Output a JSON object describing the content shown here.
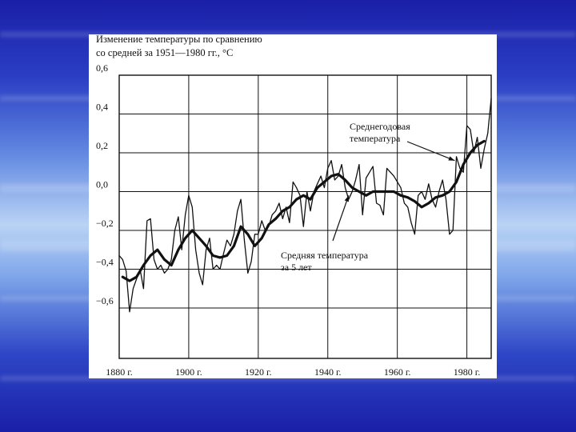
{
  "chart_data": {
    "type": "line",
    "title": [
      "Изменение температуры по сравнению",
      "со средней за 1951—1980 гг., °C"
    ],
    "xlabel": "",
    "ylabel": "",
    "xlim": [
      1880,
      1987
    ],
    "ylim": [
      -0.8,
      0.6
    ],
    "x_ticks": [
      1880,
      1900,
      1920,
      1940,
      1960,
      1980
    ],
    "x_tick_labels": [
      "1880 г.",
      "1900 г.",
      "1920 г.",
      "1940 г.",
      "1960 г.",
      "1980 г."
    ],
    "y_ticks": [
      0.6,
      0.4,
      0.2,
      0.0,
      -0.2,
      -0.4,
      -0.6
    ],
    "y_tick_labels": [
      "0,6",
      "0,4",
      "0,2",
      "0,0",
      "−0,2",
      "−0,4",
      "−0,6"
    ],
    "grid": true,
    "annotations": [
      {
        "text": [
          "Среднегодовая",
          "температура"
        ],
        "target_x": 1976.5,
        "target_y": 0.16
      },
      {
        "text": [
          "Средняя температура",
          "за 5 лет"
        ],
        "target_x": 1946,
        "target_y": -0.02
      }
    ],
    "series": [
      {
        "name": "",
        "style": "thin",
        "x": [
          1880,
          1881,
          1882,
          1883,
          1884,
          1885,
          1886,
          1887,
          1888,
          1889,
          1890,
          1891,
          1892,
          1893,
          1894,
          1895,
          1896,
          1897,
          1898,
          1899,
          1900,
          1901,
          1902,
          1903,
          1904,
          1905,
          1906,
          1907,
          1908,
          1909,
          1910,
          1911,
          1912,
          1913,
          1914,
          1915,
          1916,
          1917,
          1918,
          1919,
          1920,
          1921,
          1922,
          1923,
          1924,
          1925,
          1926,
          1927,
          1928,
          1929,
          1930,
          1931,
          1932,
          1933,
          1934,
          1935,
          1936,
          1937,
          1938,
          1939,
          1940,
          1941,
          1942,
          1943,
          1944,
          1945,
          1946,
          1947,
          1948,
          1949,
          1950,
          1951,
          1952,
          1953,
          1954,
          1955,
          1956,
          1957,
          1958,
          1959,
          1960,
          1961,
          1962,
          1963,
          1964,
          1965,
          1966,
          1967,
          1968,
          1969,
          1970,
          1971,
          1972,
          1973,
          1974,
          1975,
          1976,
          1977,
          1978,
          1979,
          1980,
          1981,
          1982,
          1983,
          1984,
          1985,
          1986,
          1987
        ],
        "values": [
          -0.33,
          -0.35,
          -0.41,
          -0.62,
          -0.5,
          -0.45,
          -0.4,
          -0.5,
          -0.15,
          -0.14,
          -0.35,
          -0.4,
          -0.38,
          -0.42,
          -0.4,
          -0.35,
          -0.2,
          -0.13,
          -0.3,
          -0.12,
          -0.02,
          -0.08,
          -0.3,
          -0.42,
          -0.48,
          -0.3,
          -0.24,
          -0.4,
          -0.38,
          -0.4,
          -0.32,
          -0.25,
          -0.28,
          -0.22,
          -0.1,
          -0.04,
          -0.25,
          -0.42,
          -0.36,
          -0.22,
          -0.22,
          -0.15,
          -0.2,
          -0.18,
          -0.12,
          -0.1,
          -0.06,
          -0.14,
          -0.08,
          -0.16,
          0.05,
          0.02,
          -0.02,
          -0.18,
          0.0,
          -0.1,
          0.0,
          0.04,
          0.08,
          0.02,
          0.12,
          0.16,
          0.06,
          0.08,
          0.14,
          0.02,
          -0.04,
          0.0,
          0.06,
          0.14,
          -0.12,
          0.07,
          0.1,
          0.13,
          -0.06,
          -0.07,
          -0.12,
          0.12,
          0.1,
          0.08,
          0.05,
          0.02,
          -0.06,
          -0.08,
          -0.16,
          -0.22,
          -0.02,
          0.0,
          -0.04,
          0.04,
          -0.04,
          -0.08,
          0.0,
          0.06,
          -0.04,
          -0.22,
          -0.2,
          0.18,
          0.12,
          0.1,
          0.34,
          0.32,
          0.2,
          0.28,
          0.12,
          0.22,
          0.3,
          0.48
        ]
      },
      {
        "name": "",
        "style": "thick",
        "x": [
          1881,
          1883,
          1885,
          1887,
          1889,
          1891,
          1893,
          1895,
          1897,
          1899,
          1901,
          1903,
          1905,
          1907,
          1909,
          1911,
          1913,
          1915,
          1917,
          1919,
          1921,
          1923,
          1925,
          1927,
          1929,
          1931,
          1933,
          1935,
          1937,
          1939,
          1941,
          1943,
          1945,
          1947,
          1949,
          1951,
          1953,
          1955,
          1957,
          1959,
          1961,
          1963,
          1965,
          1967,
          1969,
          1971,
          1973,
          1975,
          1977,
          1979,
          1981,
          1983,
          1985
        ],
        "values": [
          -0.44,
          -0.46,
          -0.44,
          -0.38,
          -0.33,
          -0.3,
          -0.35,
          -0.38,
          -0.3,
          -0.24,
          -0.2,
          -0.24,
          -0.28,
          -0.33,
          -0.34,
          -0.33,
          -0.28,
          -0.18,
          -0.22,
          -0.28,
          -0.24,
          -0.17,
          -0.14,
          -0.1,
          -0.08,
          -0.04,
          -0.02,
          -0.04,
          0.02,
          0.05,
          0.08,
          0.09,
          0.06,
          0.02,
          0.0,
          -0.02,
          0.0,
          0.0,
          0.0,
          0.0,
          -0.02,
          -0.03,
          -0.05,
          -0.08,
          -0.06,
          -0.03,
          -0.02,
          0.0,
          0.05,
          0.14,
          0.2,
          0.24,
          0.26
        ]
      }
    ]
  }
}
